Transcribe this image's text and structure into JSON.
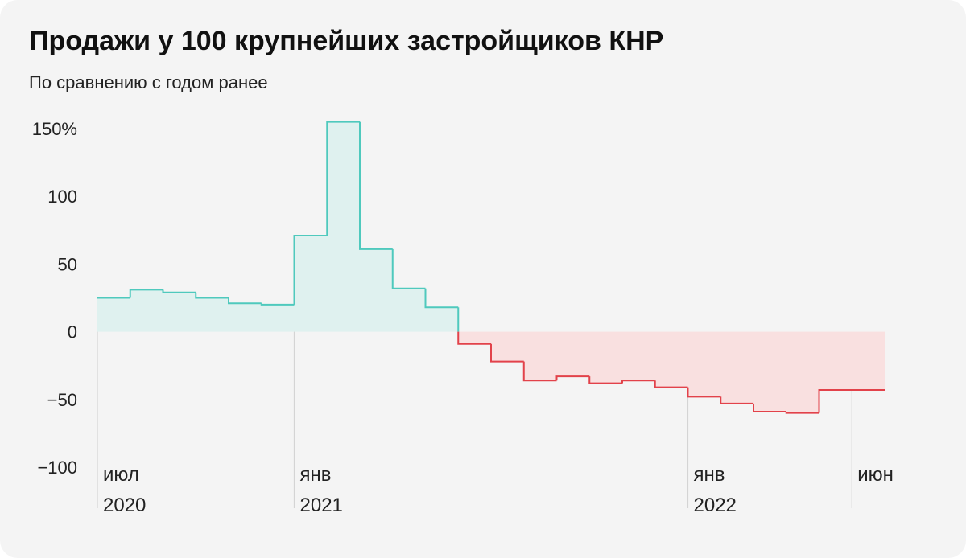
{
  "header": {
    "title": "Продажи у 100 крупнейших застройщиков КНР",
    "subtitle": "По сравнению с годом ранее"
  },
  "colors": {
    "positive_line": "#4fc9bd",
    "positive_fill": "#dff1ef",
    "negative_line": "#e2424a",
    "negative_fill": "#f9e0e0",
    "gridline": "#d4d4d4",
    "background": "#f4f4f4"
  },
  "chart_data": {
    "type": "area",
    "step": true,
    "title": "Продажи у 100 крупнейших застройщиков КНР",
    "subtitle": "По сравнению с годом ранее",
    "ylim": [
      -100,
      150
    ],
    "y_ticks": [
      150,
      100,
      50,
      0,
      -50,
      -100
    ],
    "y_tick_labels": [
      "150%",
      "100",
      "50",
      "0",
      "−50",
      "−100"
    ],
    "x": [
      "2020-07",
      "2020-08",
      "2020-09",
      "2020-10",
      "2020-11",
      "2020-12",
      "2021-01",
      "2021-02",
      "2021-03",
      "2021-04",
      "2021-05",
      "2021-06",
      "2021-07",
      "2021-08",
      "2021-09",
      "2021-10",
      "2021-11",
      "2021-12",
      "2022-01",
      "2022-02",
      "2022-03",
      "2022-04",
      "2022-05",
      "2022-06"
    ],
    "values": [
      25,
      31,
      29,
      25,
      21,
      20,
      71,
      155,
      61,
      32,
      18,
      -9,
      -22,
      -36,
      -33,
      -38,
      -36,
      -41,
      -48,
      -53,
      -59,
      -60,
      -43,
      -43
    ],
    "x_ticks": [
      {
        "x": "2020-07",
        "month": "июл",
        "year": "2020"
      },
      {
        "x": "2021-01",
        "month": "янв",
        "year": "2021"
      },
      {
        "x": "2022-01",
        "month": "янв",
        "year": "2022"
      },
      {
        "x": "2022-06",
        "month": "июн",
        "year": ""
      }
    ],
    "grid": false
  }
}
